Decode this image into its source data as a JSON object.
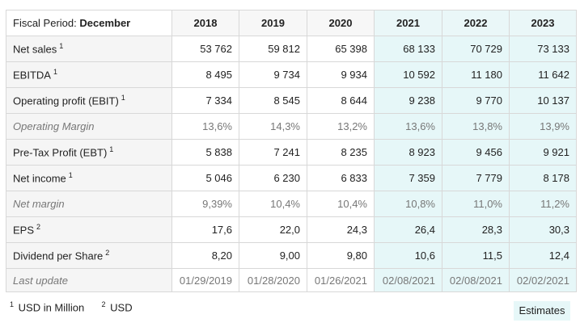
{
  "header": {
    "period_label": "Fiscal Period:",
    "period_value": "December",
    "years": [
      "2018",
      "2019",
      "2020",
      "2021",
      "2022",
      "2023"
    ]
  },
  "rows": [
    {
      "label": "Net sales",
      "note": "1",
      "values": [
        "53 762",
        "59 812",
        "65 398",
        "68 133",
        "70 729",
        "73 133"
      ],
      "italic": false
    },
    {
      "label": "EBITDA",
      "note": "1",
      "values": [
        "8 495",
        "9 734",
        "9 934",
        "10 592",
        "11 180",
        "11 642"
      ],
      "italic": false
    },
    {
      "label": "Operating profit (EBIT)",
      "note": "1",
      "values": [
        "7 334",
        "8 545",
        "8 644",
        "9 238",
        "9 770",
        "10 137"
      ],
      "italic": false
    },
    {
      "label": "Operating Margin",
      "note": "",
      "values": [
        "13,6%",
        "14,3%",
        "13,2%",
        "13,6%",
        "13,8%",
        "13,9%"
      ],
      "italic": true
    },
    {
      "label": "Pre-Tax Profit (EBT)",
      "note": "1",
      "values": [
        "5 838",
        "7 241",
        "8 235",
        "8 923",
        "9 456",
        "9 921"
      ],
      "italic": false
    },
    {
      "label": "Net income",
      "note": "1",
      "values": [
        "5 046",
        "6 230",
        "6 833",
        "7 359",
        "7 779",
        "8 178"
      ],
      "italic": false
    },
    {
      "label": "Net margin",
      "note": "",
      "values": [
        "9,39%",
        "10,4%",
        "10,4%",
        "10,8%",
        "11,0%",
        "11,2%"
      ],
      "italic": true
    },
    {
      "label": "EPS",
      "note": "2",
      "values": [
        "17,6",
        "22,0",
        "24,3",
        "26,4",
        "28,3",
        "30,3"
      ],
      "italic": false
    },
    {
      "label": "Dividend per Share",
      "note": "2",
      "values": [
        "8,20",
        "9,00",
        "9,80",
        "10,6",
        "11,5",
        "12,4"
      ],
      "italic": false
    },
    {
      "label": "Last update",
      "note": "",
      "values": [
        "01/29/2019",
        "01/28/2020",
        "01/26/2021",
        "02/08/2021",
        "02/08/2021",
        "02/02/2021"
      ],
      "italic": true
    }
  ],
  "row_heights": [
    32,
    32,
    32,
    32,
    32,
    32,
    32,
    32,
    32,
    29
  ],
  "estimate_columns_from": 3,
  "footnotes": {
    "note1_mark": "1",
    "note1_text": "USD in Million",
    "note2_mark": "2",
    "note2_text": "USD"
  },
  "estimates_label": "Estimates",
  "colors": {
    "estimate_bg": "#e6f7f8",
    "label_bg": "#f5f5f5",
    "border": "#d8d8d8"
  }
}
